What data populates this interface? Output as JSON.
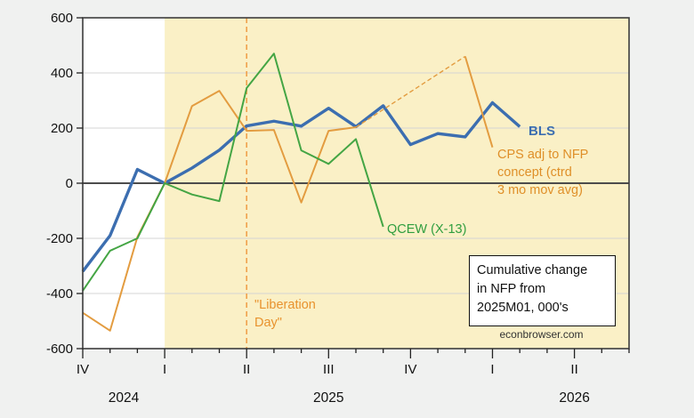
{
  "chart_data": {
    "type": "line",
    "title_box_lines": [
      "Cumulative change",
      "in NFP from",
      "2025M01, 000's"
    ],
    "watermark": "econbrowser.com",
    "x_unit": "month",
    "months": [
      "Oct 2024",
      "Nov 2024",
      "Dec 2024",
      "Jan 2025",
      "Feb 2025",
      "Mar 2025",
      "Apr 2025",
      "May 2025",
      "Jun 2025",
      "Jul 2025",
      "Aug 2025",
      "Sep 2025",
      "Oct 2025",
      "Nov 2025",
      "Dec 2025",
      "Jan 2026",
      "Feb 2026"
    ],
    "x_axis": {
      "month_span": 20,
      "quarter_labels": [
        {
          "label": "IV",
          "month": 0
        },
        {
          "label": "I",
          "month": 3
        },
        {
          "label": "II",
          "month": 6
        },
        {
          "label": "III",
          "month": 9
        },
        {
          "label": "IV",
          "month": 12
        },
        {
          "label": "I",
          "month": 15
        },
        {
          "label": "II",
          "month": 18
        }
      ],
      "year_labels": [
        {
          "label": "2024",
          "month": 1.5
        },
        {
          "label": "2025",
          "month": 9
        },
        {
          "label": "2026",
          "month": 18
        }
      ]
    },
    "y_axis": {
      "ticks": [
        600,
        400,
        200,
        0,
        -200,
        -400,
        -600
      ],
      "range": [
        -600,
        600
      ],
      "grid": true
    },
    "shading": {
      "start_month": 3,
      "end_month": 20,
      "color": "#faf0c6"
    },
    "events": [
      {
        "label_lines": [
          "\"Liberation",
          "Day\""
        ],
        "month": 6,
        "style": "dashed",
        "color": "#f0a14c",
        "text_color": "#e8922d"
      }
    ],
    "series": [
      {
        "name": "BLS",
        "color": "#3c6eb0",
        "width": 3.4,
        "start_month": 0,
        "values": [
          -320,
          -190,
          50,
          0,
          55,
          120,
          208,
          225,
          207,
          272,
          205,
          281,
          140,
          180,
          168,
          292,
          205
        ]
      },
      {
        "name": "CPS adj to NFP concept (ctrd 3 mo mov avg)",
        "label_lines": [
          "CPS adj to NFP",
          "concept (ctrd",
          "3 mo mov avg)"
        ],
        "color": "#e39c40",
        "text_color": "#df8f28",
        "width": 2,
        "start_month": 0,
        "values": [
          -470,
          -535,
          -195,
          0,
          280,
          335,
          190,
          193,
          -70,
          190,
          203
        ],
        "dashed_bridge": {
          "from_month": 10,
          "from_value": 203,
          "to_month": 14,
          "to_value": 460
        },
        "tail": {
          "months": [
            14,
            15
          ],
          "values": [
            460,
            130
          ]
        }
      },
      {
        "name": "QCEW (X-13)",
        "color": "#44a544",
        "text_color": "#2f9e3f",
        "width": 2,
        "start_month": 0,
        "values": [
          -390,
          -245,
          -200,
          0,
          -41,
          -65,
          345,
          470,
          119,
          70,
          160,
          -158
        ]
      }
    ],
    "colors": {
      "background": "#f0f1f0",
      "plot_background": "#ffffff",
      "frame": "#3c3c3c",
      "zero_line": "#4c4c4c",
      "gridline": "#d4d4d4",
      "tick": "#222222",
      "tick_label": "#111111"
    }
  }
}
